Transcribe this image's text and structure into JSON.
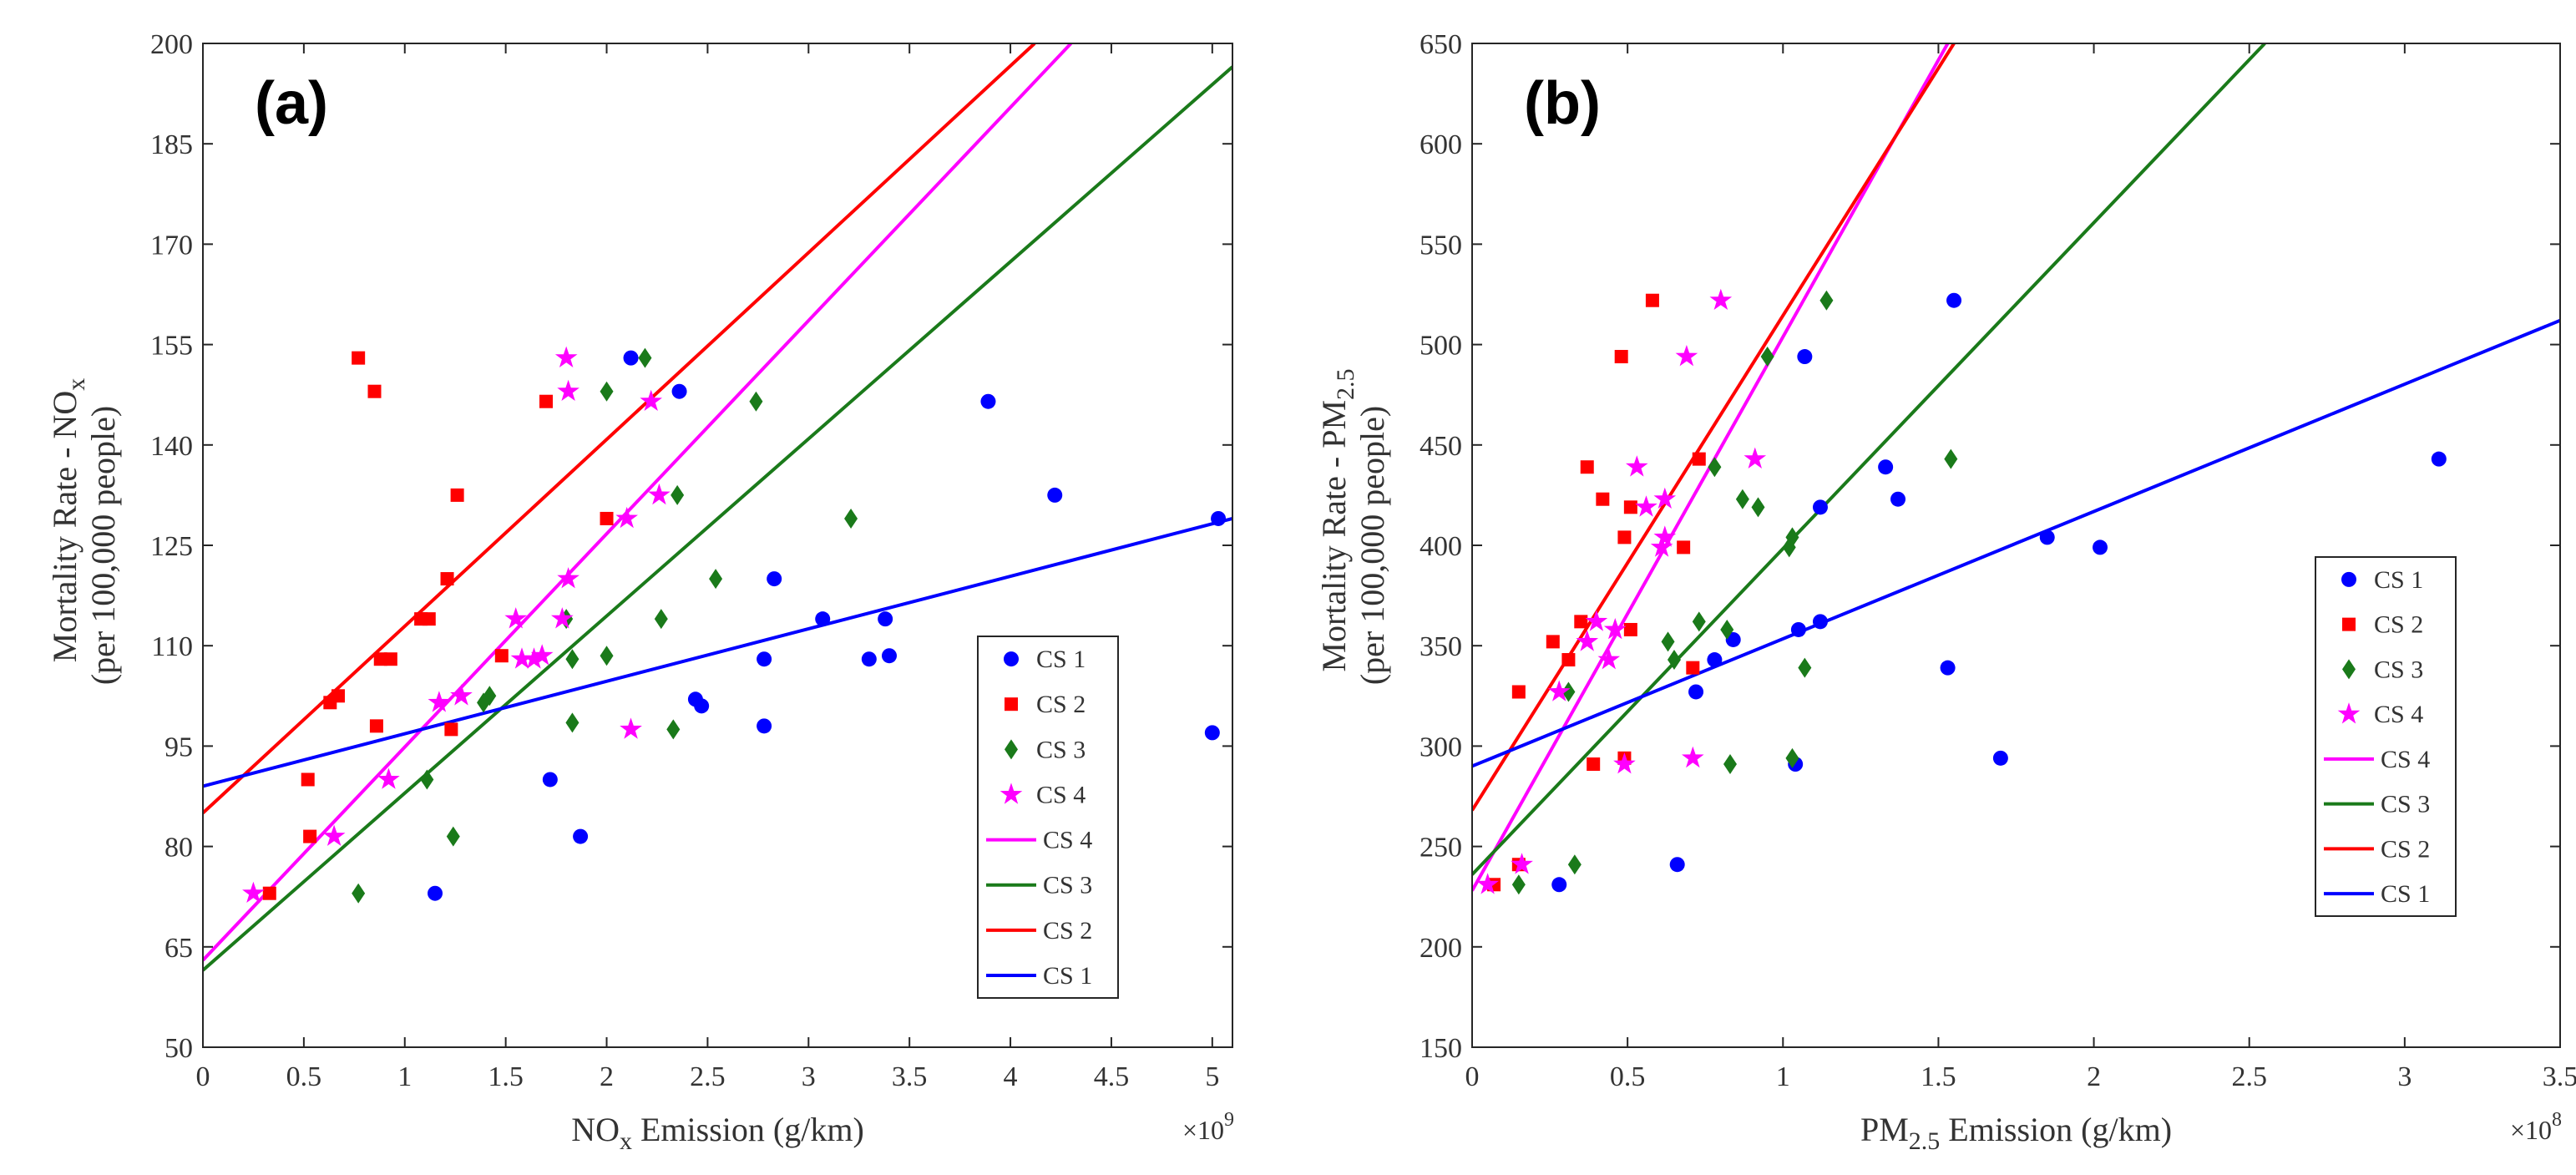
{
  "chart_data": [
    {
      "type": "scatter",
      "panel_label": "(a)",
      "xlabel": "NO",
      "xlabel_sub": "x",
      "xlabel_rest": " Emission (g/km)",
      "ylabel_line1": "Mortality Rate - NO",
      "ylabel_line1_sub": "x",
      "ylabel_line2": "(per 100,000 people)",
      "x_multiplier": "×10",
      "x_multiplier_exp": "9",
      "xlim": [
        0,
        5.1
      ],
      "ylim": [
        50,
        200
      ],
      "xticks": [
        0,
        0.5,
        1,
        1.5,
        2,
        2.5,
        3,
        3.5,
        4,
        4.5,
        5
      ],
      "xtick_labels": [
        "0",
        "0.5",
        "1",
        "1.5",
        "2",
        "2.5",
        "3",
        "3.5",
        "4",
        "4.5",
        "5"
      ],
      "yticks": [
        50,
        65,
        80,
        95,
        110,
        125,
        140,
        155,
        170,
        185,
        200
      ],
      "ytick_labels": [
        "50",
        "65",
        "80",
        "95",
        "110",
        "125",
        "140",
        "155",
        "170",
        "185",
        "200"
      ],
      "legend_position": "bottom-right",
      "scatter_series": [
        {
          "name": "CS 1",
          "marker": "circle",
          "color": "#0000ff",
          "points": [
            [
              1.15,
              73
            ],
            [
              1.72,
              90
            ],
            [
              1.87,
              81.5
            ],
            [
              2.12,
              153
            ],
            [
              2.36,
              148
            ],
            [
              2.44,
              102
            ],
            [
              2.47,
              101
            ],
            [
              2.78,
              108
            ],
            [
              2.78,
              98
            ],
            [
              2.83,
              120
            ],
            [
              3.07,
              114
            ],
            [
              3.3,
              108
            ],
            [
              3.38,
              114
            ],
            [
              3.4,
              108.5
            ],
            [
              3.89,
              146.5
            ],
            [
              4.22,
              132.5
            ],
            [
              5.0,
              97
            ],
            [
              5.03,
              129
            ]
          ]
        },
        {
          "name": "CS 2",
          "marker": "square",
          "color": "#ff0000",
          "points": [
            [
              0.33,
              73
            ],
            [
              0.52,
              90
            ],
            [
              0.53,
              81.5
            ],
            [
              0.63,
              101.5
            ],
            [
              0.67,
              102.5
            ],
            [
              0.77,
              153
            ],
            [
              0.85,
              148
            ],
            [
              0.86,
              98
            ],
            [
              0.88,
              108
            ],
            [
              0.93,
              108
            ],
            [
              1.08,
              114
            ],
            [
              1.12,
              114
            ],
            [
              1.21,
              120
            ],
            [
              1.23,
              97.5
            ],
            [
              1.26,
              132.5
            ],
            [
              1.48,
              108.5
            ],
            [
              1.7,
              146.5
            ],
            [
              2.0,
              129
            ]
          ]
        },
        {
          "name": "CS 3",
          "marker": "diamond",
          "color": "#1a7a1a",
          "points": [
            [
              0.77,
              73
            ],
            [
              1.11,
              90
            ],
            [
              1.24,
              81.5
            ],
            [
              1.39,
              101.5
            ],
            [
              1.42,
              102.5
            ],
            [
              1.8,
              114
            ],
            [
              1.83,
              108
            ],
            [
              1.83,
              98.5
            ],
            [
              2.0,
              148
            ],
            [
              2.0,
              108.5
            ],
            [
              2.19,
              153
            ],
            [
              2.27,
              114
            ],
            [
              2.33,
              97.5
            ],
            [
              2.35,
              132.5
            ],
            [
              2.54,
              120
            ],
            [
              2.74,
              146.5
            ],
            [
              3.21,
              129
            ]
          ]
        },
        {
          "name": "CS 4",
          "marker": "star",
          "color": "#ff00ff",
          "points": [
            [
              0.25,
              73
            ],
            [
              0.65,
              81.5
            ],
            [
              0.92,
              90
            ],
            [
              1.17,
              101.5
            ],
            [
              1.28,
              102.5
            ],
            [
              1.55,
              114
            ],
            [
              1.58,
              108
            ],
            [
              1.64,
              108
            ],
            [
              1.68,
              108.5
            ],
            [
              1.78,
              114
            ],
            [
              1.8,
              153
            ],
            [
              1.81,
              148
            ],
            [
              1.81,
              120
            ],
            [
              2.1,
              129
            ],
            [
              2.12,
              97.5
            ],
            [
              2.22,
              146.5
            ],
            [
              2.26,
              132.5
            ]
          ]
        }
      ],
      "fit_lines": [
        {
          "name": "CS 4",
          "color": "#ff00ff",
          "x": [
            0,
            4.3
          ],
          "y": [
            63,
            200
          ]
        },
        {
          "name": "CS 3",
          "color": "#1a7a1a",
          "x": [
            0,
            5.1
          ],
          "y": [
            61.5,
            196.5
          ]
        },
        {
          "name": "CS 2",
          "color": "#ff0000",
          "x": [
            0,
            4.12
          ],
          "y": [
            85,
            200
          ]
        },
        {
          "name": "CS 1",
          "color": "#0000ff",
          "x": [
            0,
            5.1
          ],
          "y": [
            89,
            129
          ]
        }
      ]
    },
    {
      "type": "scatter",
      "panel_label": "(b)",
      "xlabel": "PM",
      "xlabel_sub": "2.5",
      "xlabel_rest": " Emission (g/km)",
      "ylabel_line1": "Mortality Rate - PM",
      "ylabel_line1_sub": "2.5",
      "ylabel_line2": "(per 100,000 people)",
      "x_multiplier": "×10",
      "x_multiplier_exp": "8",
      "xlim": [
        0,
        3.5
      ],
      "ylim": [
        150,
        650
      ],
      "xticks": [
        0,
        0.5,
        1,
        1.5,
        2,
        2.5,
        3,
        3.5
      ],
      "xtick_labels": [
        "0",
        "0.5",
        "1",
        "1.5",
        "2",
        "2.5",
        "3",
        "3.5"
      ],
      "yticks": [
        150,
        200,
        250,
        300,
        350,
        400,
        450,
        500,
        550,
        600,
        650
      ],
      "ytick_labels": [
        "150",
        "200",
        "250",
        "300",
        "350",
        "400",
        "450",
        "500",
        "550",
        "600",
        "650"
      ],
      "legend_position": "right",
      "scatter_series": [
        {
          "name": "CS 1",
          "marker": "circle",
          "color": "#0000ff",
          "points": [
            [
              0.28,
              231
            ],
            [
              0.66,
              241
            ],
            [
              0.72,
              327
            ],
            [
              0.78,
              343
            ],
            [
              0.84,
              353
            ],
            [
              1.04,
              291
            ],
            [
              1.05,
              358
            ],
            [
              1.07,
              494
            ],
            [
              1.12,
              362
            ],
            [
              1.12,
              419
            ],
            [
              1.33,
              439
            ],
            [
              1.37,
              423
            ],
            [
              1.53,
              339
            ],
            [
              1.55,
              522
            ],
            [
              1.7,
              294
            ],
            [
              1.85,
              404
            ],
            [
              2.02,
              399
            ],
            [
              3.11,
              443
            ]
          ]
        },
        {
          "name": "CS 2",
          "marker": "square",
          "color": "#ff0000",
          "points": [
            [
              0.07,
              231
            ],
            [
              0.15,
              327
            ],
            [
              0.15,
              241
            ],
            [
              0.26,
              352
            ],
            [
              0.31,
              343
            ],
            [
              0.35,
              362
            ],
            [
              0.37,
              439
            ],
            [
              0.39,
              291
            ],
            [
              0.42,
              423
            ],
            [
              0.48,
              494
            ],
            [
              0.49,
              404
            ],
            [
              0.49,
              294
            ],
            [
              0.51,
              358
            ],
            [
              0.51,
              419
            ],
            [
              0.58,
              522
            ],
            [
              0.68,
              399
            ],
            [
              0.71,
              339
            ],
            [
              0.73,
              443
            ]
          ]
        },
        {
          "name": "CS 3",
          "marker": "diamond",
          "color": "#1a7a1a",
          "points": [
            [
              0.15,
              231
            ],
            [
              0.31,
              327
            ],
            [
              0.33,
              241
            ],
            [
              0.63,
              352
            ],
            [
              0.65,
              343
            ],
            [
              0.73,
              362
            ],
            [
              0.78,
              439
            ],
            [
              0.82,
              358
            ],
            [
              0.83,
              291
            ],
            [
              0.87,
              423
            ],
            [
              0.92,
              419
            ],
            [
              0.95,
              494
            ],
            [
              1.02,
              399
            ],
            [
              1.03,
              294
            ],
            [
              1.03,
              404
            ],
            [
              1.07,
              339
            ],
            [
              1.14,
              522
            ],
            [
              1.54,
              443
            ]
          ]
        },
        {
          "name": "CS 4",
          "marker": "star",
          "color": "#ff00ff",
          "points": [
            [
              0.05,
              231
            ],
            [
              0.16,
              241
            ],
            [
              0.28,
              327
            ],
            [
              0.37,
              352
            ],
            [
              0.4,
              362
            ],
            [
              0.44,
              343
            ],
            [
              0.46,
              358
            ],
            [
              0.49,
              291
            ],
            [
              0.53,
              439
            ],
            [
              0.56,
              419
            ],
            [
              0.61,
              399
            ],
            [
              0.62,
              404
            ],
            [
              0.62,
              423
            ],
            [
              0.69,
              494
            ],
            [
              0.71,
              294
            ],
            [
              0.8,
              522
            ],
            [
              0.91,
              443
            ]
          ]
        }
      ],
      "fit_lines": [
        {
          "name": "CS 4",
          "color": "#ff00ff",
          "x": [
            0,
            1.53
          ],
          "y": [
            228,
            650
          ]
        },
        {
          "name": "CS 3",
          "color": "#1a7a1a",
          "x": [
            0,
            2.55
          ],
          "y": [
            236,
            650
          ]
        },
        {
          "name": "CS 2",
          "color": "#ff0000",
          "x": [
            0,
            1.55
          ],
          "y": [
            268,
            650
          ]
        },
        {
          "name": "CS 1",
          "color": "#0000ff",
          "x": [
            0,
            3.5
          ],
          "y": [
            290,
            512
          ]
        }
      ]
    }
  ]
}
